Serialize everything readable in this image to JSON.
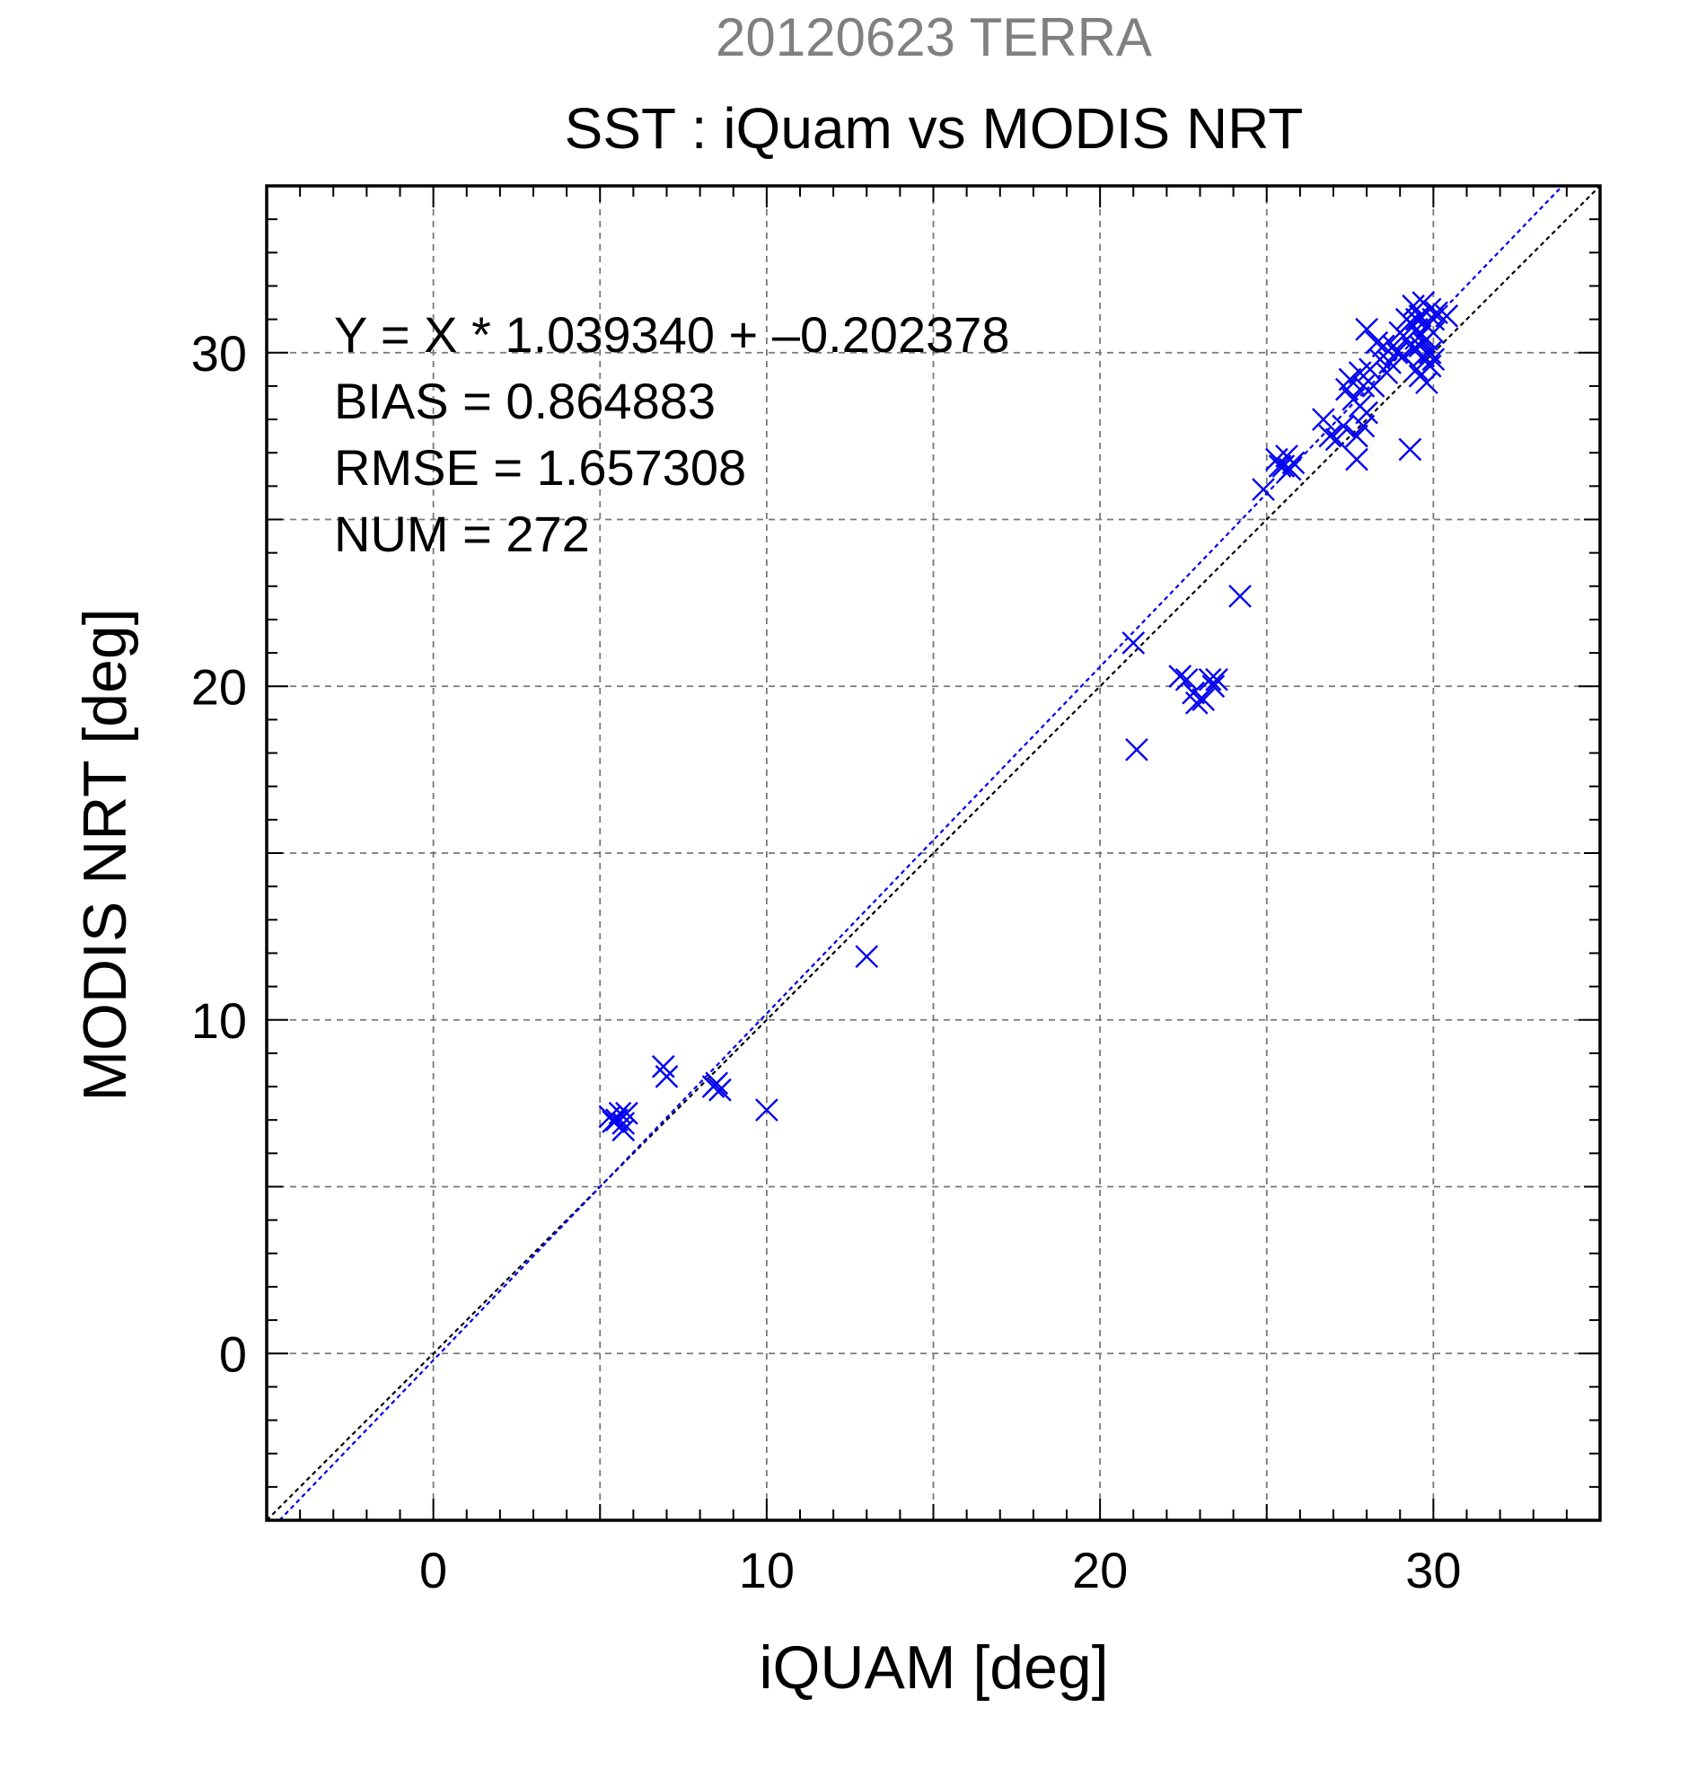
{
  "chart_data": {
    "type": "scatter",
    "title_top": "20120623 TERRA",
    "title": "SST : iQuam vs MODIS NRT",
    "xlabel": "iQUAM [deg]",
    "ylabel": "MODIS NRT [deg]",
    "xlim": [
      -5,
      35
    ],
    "ylim": [
      -5,
      35
    ],
    "x_major_ticks": [
      0,
      10,
      20,
      30
    ],
    "y_major_ticks": [
      0,
      10,
      20,
      30
    ],
    "grid": true,
    "grid_step": 5,
    "stats": [
      "Y = X * 1.039340 + –0.202378",
      "BIAS = 0.864883",
      "RMSE = 1.657308",
      "NUM = 272"
    ],
    "colors": {
      "points": "#0000ee",
      "fit_line": "#0000ee",
      "identity_line": "#000000",
      "grid": "#777777",
      "title_top": "#808080",
      "text": "#000000"
    },
    "identity_line": {
      "slope": 1,
      "intercept": 0
    },
    "fit_line": {
      "slope": 1.03934,
      "intercept": -0.202378
    },
    "points": [
      [
        5.3,
        7.1
      ],
      [
        5.5,
        7.0
      ],
      [
        5.6,
        7.2
      ],
      [
        5.7,
        6.9
      ],
      [
        5.8,
        7.2
      ],
      [
        5.4,
        6.95
      ],
      [
        5.7,
        6.7
      ],
      [
        6.9,
        8.6
      ],
      [
        7.0,
        8.3
      ],
      [
        8.4,
        8.0
      ],
      [
        8.6,
        7.9
      ],
      [
        8.5,
        8.1
      ],
      [
        10.0,
        7.3
      ],
      [
        13.0,
        11.9
      ],
      [
        21.0,
        21.3
      ],
      [
        21.1,
        18.1
      ],
      [
        22.4,
        20.3
      ],
      [
        22.6,
        20.2
      ],
      [
        22.8,
        19.8
      ],
      [
        22.9,
        19.5
      ],
      [
        23.1,
        19.6
      ],
      [
        23.3,
        20.2
      ],
      [
        23.5,
        20.2
      ],
      [
        23.4,
        20.0
      ],
      [
        24.2,
        22.7
      ],
      [
        24.9,
        25.9
      ],
      [
        25.3,
        26.8
      ],
      [
        25.5,
        26.6
      ],
      [
        25.6,
        26.9
      ],
      [
        25.8,
        26.7
      ],
      [
        25.7,
        26.5
      ],
      [
        25.4,
        26.6
      ],
      [
        26.7,
        28.0
      ],
      [
        26.9,
        27.5
      ],
      [
        27.1,
        27.4
      ],
      [
        27.3,
        27.8
      ],
      [
        27.4,
        28.9
      ],
      [
        27.5,
        29.2
      ],
      [
        27.6,
        28.6
      ],
      [
        27.7,
        27.5
      ],
      [
        27.7,
        26.8
      ],
      [
        27.8,
        29.4
      ],
      [
        27.9,
        29.0
      ],
      [
        27.8,
        28.4
      ],
      [
        27.9,
        27.8
      ],
      [
        28.0,
        28.2
      ],
      [
        28.0,
        30.7
      ],
      [
        28.1,
        29.5
      ],
      [
        28.2,
        29.0
      ],
      [
        28.3,
        30.3
      ],
      [
        28.4,
        29.8
      ],
      [
        28.5,
        30.2
      ],
      [
        28.6,
        29.4
      ],
      [
        28.7,
        29.7
      ],
      [
        28.9,
        30.0
      ],
      [
        29.0,
        30.6
      ],
      [
        29.1,
        29.9
      ],
      [
        29.2,
        30.4
      ],
      [
        29.3,
        30.9
      ],
      [
        29.4,
        31.4
      ],
      [
        29.4,
        30.1
      ],
      [
        29.5,
        30.7
      ],
      [
        29.5,
        29.5
      ],
      [
        29.6,
        31.1
      ],
      [
        29.6,
        30.2
      ],
      [
        29.7,
        31.5
      ],
      [
        29.7,
        29.9
      ],
      [
        29.8,
        30.8
      ],
      [
        29.8,
        30.4
      ],
      [
        29.9,
        31.3
      ],
      [
        29.9,
        30.0
      ],
      [
        29.3,
        27.1
      ],
      [
        29.8,
        29.1
      ],
      [
        30.0,
        30.6
      ],
      [
        30.0,
        31.0
      ],
      [
        30.1,
        31.2
      ],
      [
        30.4,
        31.1
      ],
      [
        29.6,
        30.5
      ],
      [
        29.4,
        30.8
      ],
      [
        29.2,
        31.0
      ],
      [
        29.9,
        29.6
      ],
      [
        30.0,
        29.8
      ],
      [
        29.7,
        30.3
      ],
      [
        28.8,
        30.2
      ],
      [
        29.5,
        31.0
      ],
      [
        29.6,
        29.3
      ]
    ]
  }
}
